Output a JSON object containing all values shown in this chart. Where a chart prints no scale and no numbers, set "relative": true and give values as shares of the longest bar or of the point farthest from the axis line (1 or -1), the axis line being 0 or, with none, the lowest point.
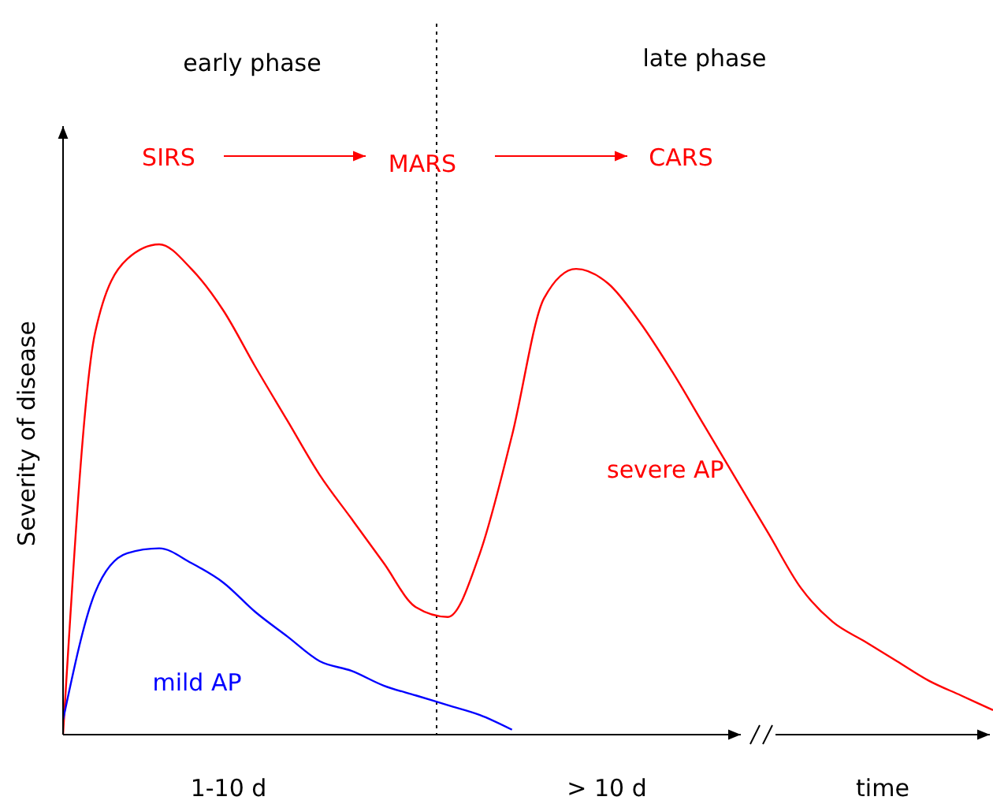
{
  "chart_data": {
    "type": "line",
    "relative": true,
    "xlabel": "time",
    "ylabel": "Severity of disease",
    "annotations": [
      "early phase",
      "late phase",
      "SIRS",
      "MARS",
      "CARS",
      "1-10 d",
      "> 10 d"
    ],
    "categories": [
      null,
      null,
      null,
      null,
      null,
      null,
      null,
      null,
      null,
      null,
      null,
      null,
      null,
      null,
      null,
      null,
      null,
      null,
      null,
      null,
      null,
      null,
      null,
      null,
      null,
      null,
      null,
      null,
      null,
      null
    ],
    "series": [
      {
        "name": "severe AP",
        "color": "#ff0000",
        "values": [
          0,
          0.82,
          0.97,
          1,
          0.95,
          0.865,
          0.75,
          0.64,
          0.53,
          0.44,
          0.35,
          0.26,
          0.24,
          0.37,
          0.61,
          0.89,
          0.95,
          0.92,
          0.84,
          0.74,
          0.63,
          0.52,
          0.41,
          0.3,
          0.23,
          0.19,
          0.15,
          0.11,
          0.08,
          0.05
        ]
      },
      {
        "name": "mild AP",
        "color": "#0000ff",
        "values": [
          0.03,
          0.29,
          0.37,
          0.38,
          0.35,
          0.31,
          0.25,
          0.2,
          0.15,
          0.13,
          0.1,
          0.08,
          0.06,
          0.04,
          0.01,
          null,
          null,
          null,
          null,
          null,
          null,
          null,
          null,
          null,
          null,
          null,
          null,
          null,
          null,
          null
        ]
      }
    ],
    "marker": "none",
    "line_style": "solid"
  }
}
